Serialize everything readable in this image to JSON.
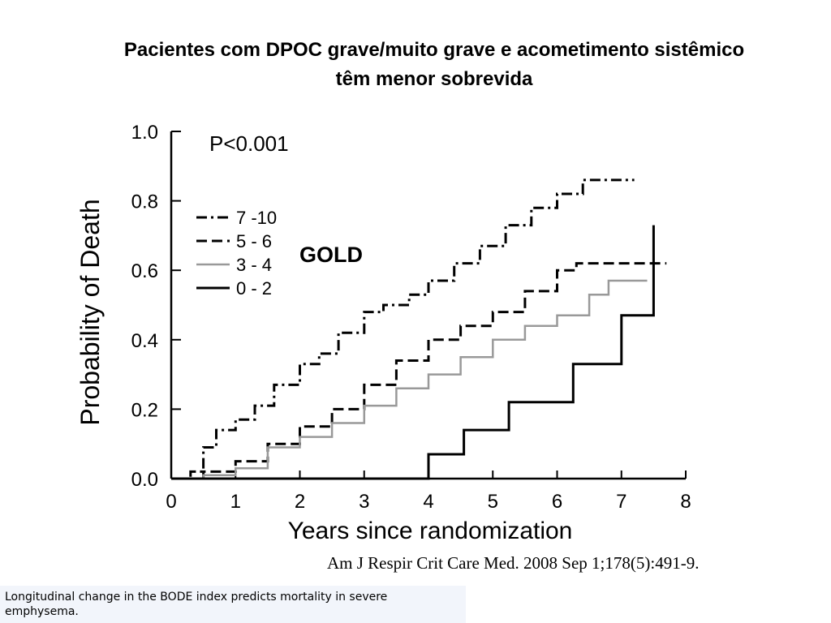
{
  "slide": {
    "title_line1": "Pacientes com DPOC grave/muito grave e acometimento sistêmico",
    "title_line2": "têm menor sobrevida"
  },
  "annotation_gold": "GOLD",
  "citation": "Am J Respir Crit Care Med. 2008 Sep 1;178(5):491-9.",
  "caption": "Longitudinal change in the BODE index predicts mortality in severe emphysema.",
  "chart_data": {
    "type": "line",
    "title": "",
    "xlabel": "Years since randomization",
    "ylabel": "Probability of Death",
    "xlim": [
      0,
      8
    ],
    "ylim": [
      0,
      1.0
    ],
    "xticks": [
      "0",
      "1",
      "2",
      "3",
      "4",
      "5",
      "6",
      "7",
      "8"
    ],
    "yticks": [
      "0.0",
      "0.2",
      "0.4",
      "0.6",
      "0.8",
      "1.0"
    ],
    "annotation": "P<0.001",
    "legend_position": "top-left",
    "grid": false,
    "series": [
      {
        "name": "7 -10",
        "style": "dash-dot",
        "color": "#000000",
        "x": [
          0,
          0.3,
          0.5,
          0.7,
          1.0,
          1.3,
          1.6,
          2.0,
          2.3,
          2.6,
          3.0,
          3.3,
          3.7,
          4.0,
          4.4,
          4.8,
          5.2,
          5.6,
          6.0,
          6.4,
          7.2
        ],
        "y": [
          0,
          0.02,
          0.09,
          0.14,
          0.17,
          0.21,
          0.27,
          0.33,
          0.36,
          0.42,
          0.48,
          0.5,
          0.53,
          0.57,
          0.62,
          0.67,
          0.73,
          0.78,
          0.82,
          0.86,
          0.86
        ]
      },
      {
        "name": "5 - 6",
        "style": "dash",
        "color": "#000000",
        "x": [
          0,
          0.5,
          1.0,
          1.5,
          2.0,
          2.5,
          3.0,
          3.5,
          4.0,
          4.5,
          5.0,
          5.5,
          6.0,
          6.3,
          7.7
        ],
        "y": [
          0,
          0.02,
          0.05,
          0.1,
          0.15,
          0.2,
          0.27,
          0.34,
          0.4,
          0.44,
          0.48,
          0.54,
          0.6,
          0.62,
          0.62
        ]
      },
      {
        "name": "3 - 4",
        "style": "solid",
        "color": "#999999",
        "x": [
          0,
          0.5,
          1.0,
          1.5,
          2.0,
          2.5,
          3.0,
          3.5,
          4.0,
          4.5,
          5.0,
          5.5,
          6.0,
          6.5,
          6.8,
          7.4
        ],
        "y": [
          0,
          0.01,
          0.03,
          0.09,
          0.12,
          0.16,
          0.21,
          0.26,
          0.3,
          0.35,
          0.4,
          0.44,
          0.47,
          0.53,
          0.57,
          0.57
        ]
      },
      {
        "name": "0 - 2",
        "style": "step",
        "color": "#000000",
        "x": [
          0,
          4.0,
          4.0,
          4.55,
          4.55,
          5.25,
          5.25,
          6.25,
          6.25,
          7.0,
          7.0,
          7.5,
          7.5
        ],
        "y": [
          0,
          0,
          0.07,
          0.07,
          0.14,
          0.14,
          0.22,
          0.22,
          0.33,
          0.33,
          0.47,
          0.47,
          0.73
        ]
      }
    ]
  }
}
